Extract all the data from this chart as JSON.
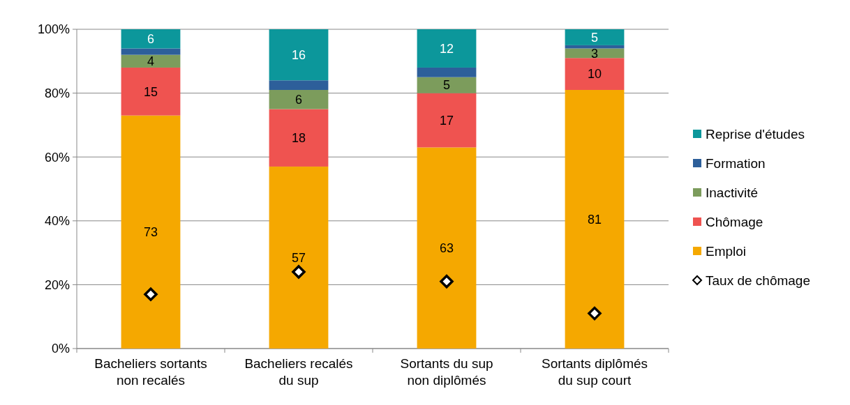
{
  "chart_data": {
    "type": "bar",
    "stacked": true,
    "categories": [
      "Bacheliers sortants\nnon recalés",
      "Bacheliers recalés\ndu sup",
      "Sortants du sup\nnon diplômés",
      "Sortants diplômés\ndu sup court"
    ],
    "series": [
      {
        "name": "Emploi",
        "color": "#f5a800",
        "values": [
          73,
          57,
          63,
          81
        ],
        "value_labels": [
          "73",
          "57",
          "63",
          "81"
        ]
      },
      {
        "name": "Chômage",
        "color": "#ef5350",
        "values": [
          15,
          18,
          17,
          10
        ],
        "value_labels": [
          "15",
          "18",
          "17",
          "10"
        ]
      },
      {
        "name": "Inactivité",
        "color": "#7c9c5c",
        "values": [
          4,
          6,
          5,
          3
        ],
        "value_labels": [
          "4",
          "6",
          "5",
          "3"
        ]
      },
      {
        "name": "Formation",
        "color": "#2d5f9a",
        "values": [
          2,
          3,
          3,
          1
        ],
        "value_labels": [
          null,
          null,
          null,
          null
        ]
      },
      {
        "name": "Reprise d'études",
        "color": "#0c979b",
        "values": [
          6,
          16,
          12,
          5
        ],
        "value_labels": [
          "6",
          "16",
          "12",
          "5"
        ]
      },
      {
        "name": "Taux de chômage",
        "type": "scatter",
        "color": "#000000",
        "marker": "diamond",
        "values": [
          17,
          24,
          21,
          11
        ]
      }
    ],
    "ylim": [
      0,
      100
    ],
    "yticks": [
      {
        "value": 0,
        "label": "0%"
      },
      {
        "value": 20,
        "label": "20%"
      },
      {
        "value": 40,
        "label": "40%"
      },
      {
        "value": 60,
        "label": "60%"
      },
      {
        "value": 80,
        "label": "80%"
      },
      {
        "value": 100,
        "label": "100%"
      }
    ],
    "grid": "y",
    "legend": "right"
  }
}
